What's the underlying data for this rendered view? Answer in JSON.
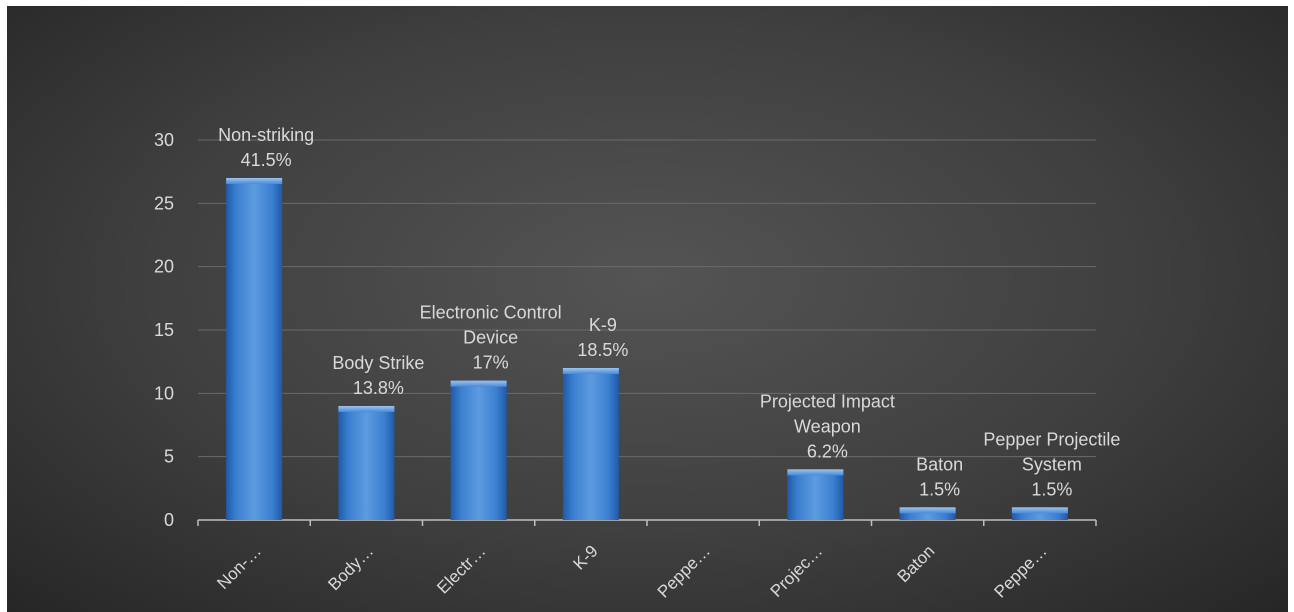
{
  "chart_data": {
    "type": "bar",
    "categories": [
      "Non-…",
      "Body…",
      "Electr…",
      "K-9",
      "Peppe…",
      "Projec…",
      "Baton",
      "Peppe…"
    ],
    "values": [
      27,
      9,
      11,
      12,
      0,
      4,
      1,
      1
    ],
    "data_labels": [
      [
        "Non-striking",
        "41.5%"
      ],
      [
        "Body Strike",
        "13.8%"
      ],
      [
        "Electronic Control",
        "Device",
        "17%"
      ],
      [
        "K-9",
        "18.5%"
      ],
      [],
      [
        "Projected Impact",
        "Weapon",
        "6.2%"
      ],
      [
        "Baton",
        "1.5%"
      ],
      [
        "Pepper Projectile",
        "System",
        "1.5%"
      ]
    ],
    "ylim": [
      0,
      30
    ],
    "y_ticks": [
      0,
      5,
      10,
      15,
      20,
      25,
      30
    ],
    "grid": true,
    "colors": {
      "bar_light": "#6fa8e6",
      "bar_mid": "#3a7fd0",
      "bar_dark": "#1f5aa8",
      "text": "#d9d9d9",
      "gridline": "#6a6a6a",
      "axis": "#bfbfbf"
    }
  }
}
